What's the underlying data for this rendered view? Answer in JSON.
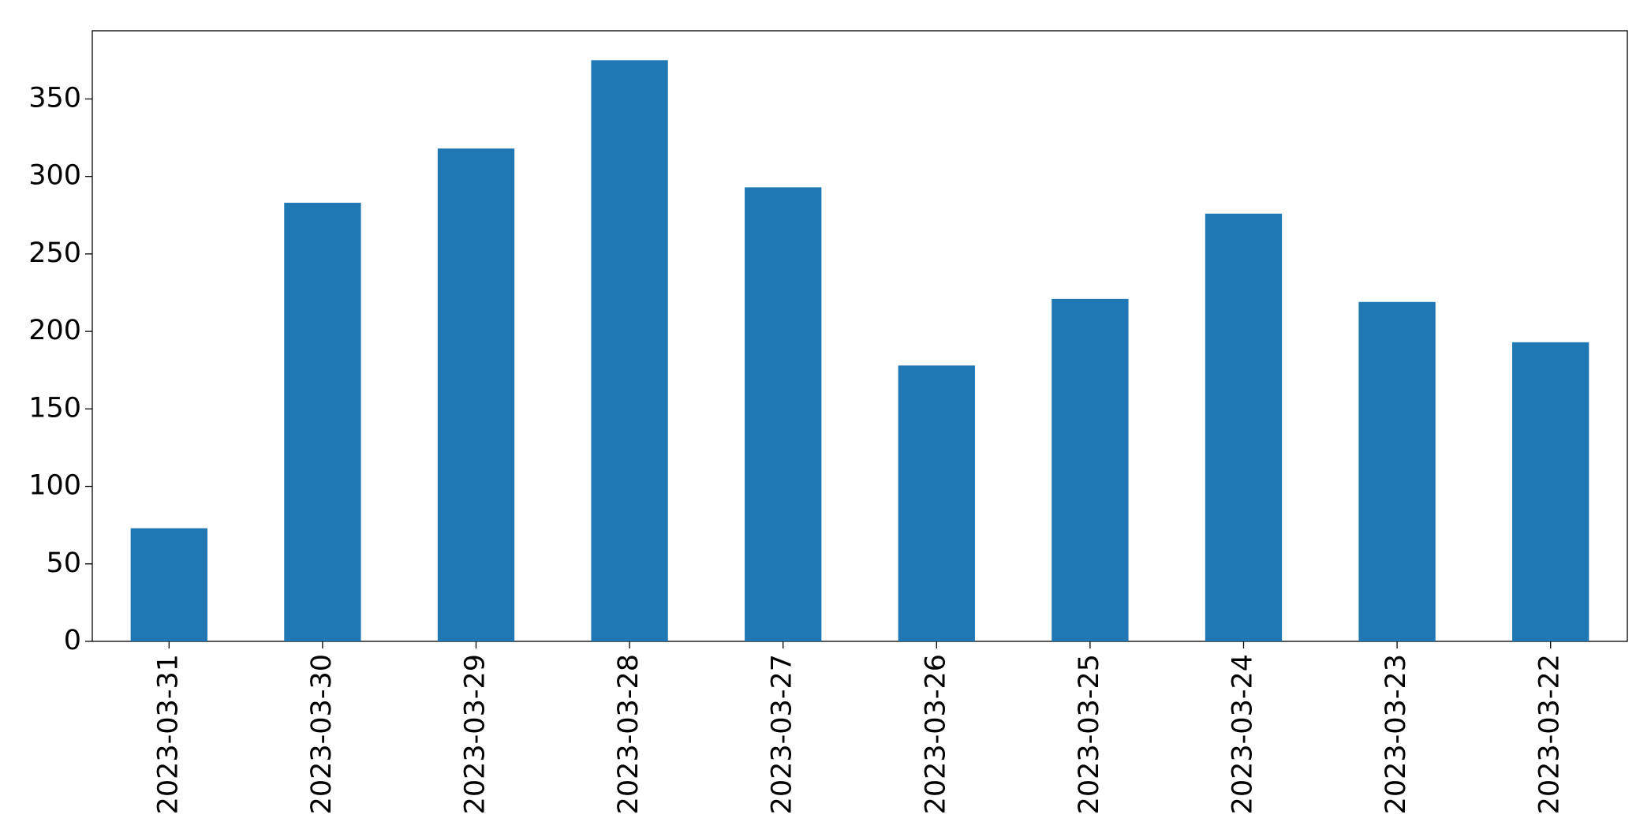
{
  "chart_data": {
    "type": "bar",
    "categories": [
      "2023-03-31",
      "2023-03-30",
      "2023-03-29",
      "2023-03-28",
      "2023-03-27",
      "2023-03-26",
      "2023-03-25",
      "2023-03-24",
      "2023-03-23",
      "2023-03-22"
    ],
    "values": [
      73,
      283,
      318,
      375,
      293,
      178,
      221,
      276,
      219,
      193
    ],
    "color": "#1f77b4",
    "ylim": [
      0,
      394
    ],
    "yticks": [
      0,
      50,
      100,
      150,
      200,
      250,
      300,
      350
    ],
    "grid": false
  }
}
